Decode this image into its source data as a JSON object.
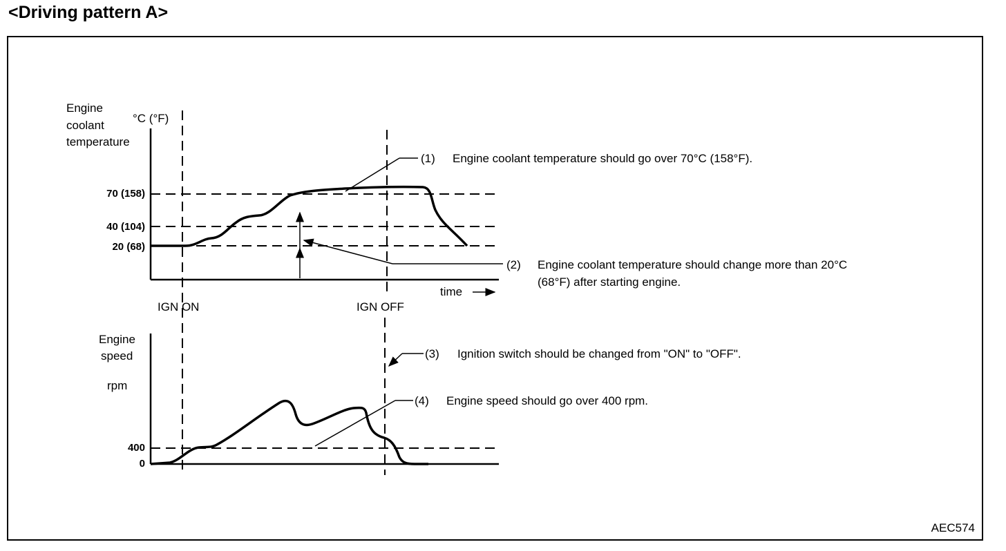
{
  "title": "<Driving pattern A>",
  "figure_code": "AEC574",
  "top_chart": {
    "y_axis_label": [
      "Engine",
      "coolant",
      "temperature"
    ],
    "unit": "°C (°F)",
    "ticks": [
      "70 (158)",
      "40 (104)",
      "20 (68)"
    ],
    "x_axis_label": "time",
    "events": [
      "IGN ON",
      "IGN OFF"
    ]
  },
  "bottom_chart": {
    "y_axis_label": [
      "Engine",
      "speed"
    ],
    "unit": "rpm",
    "ticks": [
      "400",
      "0"
    ]
  },
  "notes": [
    {
      "num": "(1)",
      "text": "Engine coolant temperature should go over 70°C (158°F)."
    },
    {
      "num": "(2)",
      "text_line1": "Engine coolant temperature should change more than 20°C",
      "text_line2": "(68°F) after starting engine."
    },
    {
      "num": "(3)",
      "text": "Ignition switch should be changed from \"ON\" to \"OFF\"."
    },
    {
      "num": "(4)",
      "text": "Engine speed should go over 400 rpm."
    }
  ]
}
